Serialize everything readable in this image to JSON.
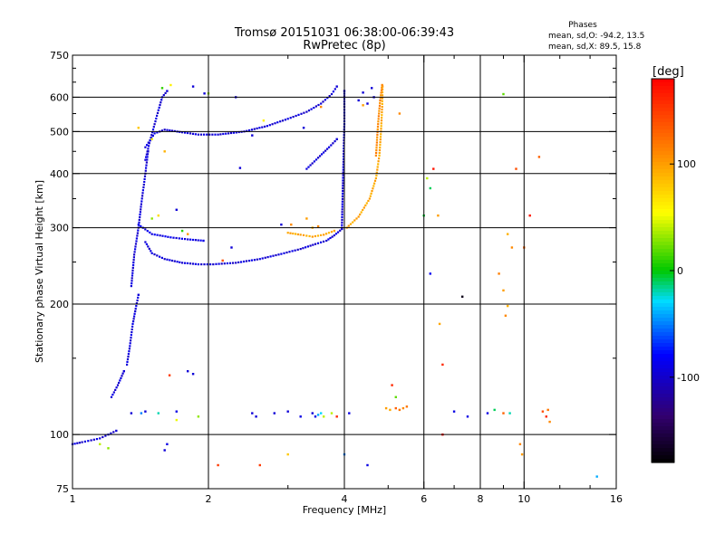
{
  "chart_data": {
    "type": "scatter",
    "title": "Tromsø 20151031 06:38:00-06:39:43",
    "subtitle": "RwPretec (8p)",
    "xlabel": "Frequency [MHz]",
    "ylabel": "Stationary phase Virtual Height [km]",
    "x_scale": "log",
    "y_scale": "log",
    "xlim": [
      1,
      16
    ],
    "ylim": [
      75,
      750
    ],
    "x_ticks": [
      1,
      2,
      4,
      6,
      8,
      10,
      16
    ],
    "x_tick_labels": [
      "1",
      "2",
      "4",
      "6",
      "8",
      "10",
      "16"
    ],
    "x_minor_ticks": [
      3,
      5,
      7,
      9,
      12,
      14
    ],
    "y_ticks": [
      75,
      100,
      200,
      300,
      400,
      500,
      600,
      750
    ],
    "y_tick_labels": [
      "75",
      "100",
      "200",
      "300",
      "400",
      "500",
      "600",
      "750"
    ],
    "y_minor_ticks": [
      150,
      250,
      350,
      450,
      550,
      650,
      700
    ],
    "grid_x": [
      2,
      4,
      6,
      8,
      10
    ],
    "grid_y": [
      100,
      200,
      300,
      400,
      500,
      600
    ],
    "grid": true,
    "phases": {
      "title": "Phases",
      "line1": "mean, sd,O: -94.2, 13.5",
      "line2": "mean, sd,X: 89.5, 15.8"
    },
    "colorbar": {
      "unit": "[deg]",
      "range": [
        -180,
        180
      ],
      "ticks": [
        100,
        0,
        -100
      ],
      "tick_labels": [
        "100",
        "0",
        "-100"
      ],
      "colormap": "rainbow"
    },
    "traces": [
      {
        "x": [
          1.45,
          1.52,
          1.6,
          1.75,
          1.9,
          2.1,
          2.4,
          2.7,
          3.0,
          3.3,
          3.55,
          3.75,
          3.85
        ],
        "y": [
          460,
          495,
          505,
          498,
          492,
          492,
          500,
          515,
          535,
          555,
          580,
          610,
          635
        ],
        "phase": -95
      },
      {
        "x": [
          1.45,
          1.5,
          1.6,
          1.75,
          1.9,
          2.05,
          2.3,
          2.6,
          2.9,
          3.2,
          3.45,
          3.65,
          3.8,
          3.95
        ],
        "y": [
          278,
          262,
          254,
          249,
          247,
          247,
          249,
          254,
          261,
          268,
          275,
          280,
          288,
          298
        ],
        "phase": -95
      },
      {
        "x": [
          1.4,
          1.5,
          1.65,
          1.8,
          1.95
        ],
        "y": [
          305,
          290,
          285,
          282,
          280
        ],
        "phase": -90
      },
      {
        "x": [
          3.3,
          3.5,
          3.7,
          3.85
        ],
        "y": [
          410,
          435,
          460,
          480
        ],
        "phase": -95
      },
      {
        "x": [
          3.95,
          3.96,
          3.97,
          3.98,
          3.99,
          4.0,
          4.0,
          4.0
        ],
        "y": [
          300,
          340,
          380,
          420,
          470,
          520,
          570,
          620
        ],
        "phase": -95
      },
      {
        "x": [
          4.05,
          4.3,
          4.55,
          4.7,
          4.78,
          4.82,
          4.85,
          4.86
        ],
        "y": [
          300,
          318,
          350,
          390,
          440,
          500,
          570,
          635
        ],
        "phase": 95
      },
      {
        "x": [
          4.7,
          4.75,
          4.8,
          4.85
        ],
        "y": [
          440,
          520,
          590,
          640
        ],
        "phase": 110
      },
      {
        "x": [
          3.0,
          3.2,
          3.4,
          3.6,
          3.8
        ],
        "y": [
          292,
          289,
          286,
          289,
          295
        ],
        "phase": 95
      },
      {
        "x": [
          1.32,
          1.34,
          1.36,
          1.38,
          1.4
        ],
        "y": [
          145,
          160,
          180,
          195,
          210
        ],
        "phase": -95
      },
      {
        "x": [
          1.35,
          1.37,
          1.4,
          1.42,
          1.45,
          1.47
        ],
        "y": [
          220,
          260,
          300,
          340,
          400,
          450
        ],
        "phase": -95
      },
      {
        "x": [
          1.45,
          1.48,
          1.52,
          1.55,
          1.58,
          1.62
        ],
        "y": [
          430,
          470,
          520,
          560,
          600,
          620
        ],
        "phase": -95
      },
      {
        "x": [
          1.0,
          1.05,
          1.1,
          1.15,
          1.2,
          1.25
        ],
        "y": [
          95,
          96,
          97,
          98,
          100,
          102
        ],
        "phase": -95
      },
      {
        "x": [
          1.22,
          1.26,
          1.3
        ],
        "y": [
          122,
          130,
          140
        ],
        "phase": -95
      }
    ],
    "scatter_points": [
      {
        "x": 1.58,
        "y": 630,
        "phase": 10
      },
      {
        "x": 1.65,
        "y": 640,
        "phase": 60
      },
      {
        "x": 1.85,
        "y": 635,
        "phase": -95
      },
      {
        "x": 1.96,
        "y": 612,
        "phase": -95
      },
      {
        "x": 2.0,
        "y": 612,
        "phase": 30
      },
      {
        "x": 2.3,
        "y": 600,
        "phase": -95
      },
      {
        "x": 2.15,
        "y": 252,
        "phase": 140
      },
      {
        "x": 2.5,
        "y": 490,
        "phase": -95
      },
      {
        "x": 2.65,
        "y": 530,
        "phase": 60
      },
      {
        "x": 3.25,
        "y": 510,
        "phase": -95
      },
      {
        "x": 4.4,
        "y": 615,
        "phase": -95
      },
      {
        "x": 5.3,
        "y": 550,
        "phase": 110
      },
      {
        "x": 6.3,
        "y": 410,
        "phase": 170
      },
      {
        "x": 6.1,
        "y": 390,
        "phase": 40
      },
      {
        "x": 6.2,
        "y": 370,
        "phase": -10
      },
      {
        "x": 6.0,
        "y": 320,
        "phase": -5
      },
      {
        "x": 6.2,
        "y": 235,
        "phase": -85
      },
      {
        "x": 6.45,
        "y": 320,
        "phase": 100
      },
      {
        "x": 6.5,
        "y": 180,
        "phase": 95
      },
      {
        "x": 6.6,
        "y": 145,
        "phase": 160
      },
      {
        "x": 7.3,
        "y": 208,
        "phase": -170
      },
      {
        "x": 8.8,
        "y": 235,
        "phase": 115
      },
      {
        "x": 9.0,
        "y": 215,
        "phase": 100
      },
      {
        "x": 9.1,
        "y": 188,
        "phase": 110
      },
      {
        "x": 9.2,
        "y": 198,
        "phase": 90
      },
      {
        "x": 9.6,
        "y": 410,
        "phase": 140
      },
      {
        "x": 9.2,
        "y": 290,
        "phase": 90
      },
      {
        "x": 9.4,
        "y": 270,
        "phase": 110
      },
      {
        "x": 9.0,
        "y": 610,
        "phase": 20
      },
      {
        "x": 10.0,
        "y": 270,
        "phase": 130
      },
      {
        "x": 10.3,
        "y": 320,
        "phase": 170
      },
      {
        "x": 10.8,
        "y": 437,
        "phase": 130
      },
      {
        "x": 11.0,
        "y": 113,
        "phase": 140
      },
      {
        "x": 11.2,
        "y": 110,
        "phase": 160
      },
      {
        "x": 11.3,
        "y": 114,
        "phase": 120
      },
      {
        "x": 11.4,
        "y": 107,
        "phase": 110
      },
      {
        "x": 14.5,
        "y": 80,
        "phase": -40
      },
      {
        "x": 9.8,
        "y": 95,
        "phase": 110
      },
      {
        "x": 9.9,
        "y": 90,
        "phase": 100
      },
      {
        "x": 8.3,
        "y": 112,
        "phase": -90
      },
      {
        "x": 8.6,
        "y": 114,
        "phase": -10
      },
      {
        "x": 9.3,
        "y": 112,
        "phase": -20
      },
      {
        "x": 9.0,
        "y": 112,
        "phase": 130
      },
      {
        "x": 7.0,
        "y": 113,
        "phase": -90
      },
      {
        "x": 7.5,
        "y": 110,
        "phase": -90
      },
      {
        "x": 5.5,
        "y": 116,
        "phase": 120
      },
      {
        "x": 5.2,
        "y": 122,
        "phase": 20
      },
      {
        "x": 5.05,
        "y": 114,
        "phase": 95
      },
      {
        "x": 5.2,
        "y": 115,
        "phase": 130
      },
      {
        "x": 5.3,
        "y": 114,
        "phase": 120
      },
      {
        "x": 5.4,
        "y": 115,
        "phase": 110
      },
      {
        "x": 4.95,
        "y": 115,
        "phase": 100
      },
      {
        "x": 5.1,
        "y": 130,
        "phase": 160
      },
      {
        "x": 6.6,
        "y": 100,
        "phase": 175
      },
      {
        "x": 4.0,
        "y": 90,
        "phase": -50
      },
      {
        "x": 4.5,
        "y": 85,
        "phase": -90
      },
      {
        "x": 3.0,
        "y": 90,
        "phase": 80
      },
      {
        "x": 2.6,
        "y": 85,
        "phase": 150
      },
      {
        "x": 2.1,
        "y": 85,
        "phase": 150
      },
      {
        "x": 1.64,
        "y": 137,
        "phase": 150
      },
      {
        "x": 1.8,
        "y": 140,
        "phase": -95
      },
      {
        "x": 1.85,
        "y": 138,
        "phase": -95
      },
      {
        "x": 1.6,
        "y": 92,
        "phase": -95
      },
      {
        "x": 1.62,
        "y": 95,
        "phase": -90
      },
      {
        "x": 1.55,
        "y": 112,
        "phase": -20
      },
      {
        "x": 1.7,
        "y": 108,
        "phase": 50
      },
      {
        "x": 1.7,
        "y": 113,
        "phase": -90
      },
      {
        "x": 1.9,
        "y": 110,
        "phase": 30
      },
      {
        "x": 1.42,
        "y": 112,
        "phase": -50
      },
      {
        "x": 1.45,
        "y": 113,
        "phase": -95
      },
      {
        "x": 1.35,
        "y": 112,
        "phase": -95
      },
      {
        "x": 1.15,
        "y": 95,
        "phase": 40
      },
      {
        "x": 1.2,
        "y": 93,
        "phase": 30
      },
      {
        "x": 2.5,
        "y": 112,
        "phase": -95
      },
      {
        "x": 2.55,
        "y": 110,
        "phase": -95
      },
      {
        "x": 2.8,
        "y": 112,
        "phase": -95
      },
      {
        "x": 3.0,
        "y": 113,
        "phase": -95
      },
      {
        "x": 3.2,
        "y": 110,
        "phase": -90
      },
      {
        "x": 3.4,
        "y": 112,
        "phase": -95
      },
      {
        "x": 3.45,
        "y": 110,
        "phase": -90
      },
      {
        "x": 3.5,
        "y": 111,
        "phase": -40
      },
      {
        "x": 3.55,
        "y": 112,
        "phase": -30
      },
      {
        "x": 3.6,
        "y": 110,
        "phase": 40
      },
      {
        "x": 3.75,
        "y": 112,
        "phase": 40
      },
      {
        "x": 3.85,
        "y": 110,
        "phase": 160
      },
      {
        "x": 4.1,
        "y": 112,
        "phase": -90
      },
      {
        "x": 1.5,
        "y": 315,
        "phase": 30
      },
      {
        "x": 1.55,
        "y": 320,
        "phase": 70
      },
      {
        "x": 1.7,
        "y": 330,
        "phase": -95
      },
      {
        "x": 1.75,
        "y": 295,
        "phase": 10
      },
      {
        "x": 1.8,
        "y": 290,
        "phase": 100
      },
      {
        "x": 1.6,
        "y": 450,
        "phase": 90
      },
      {
        "x": 1.5,
        "y": 480,
        "phase": 60
      },
      {
        "x": 1.4,
        "y": 510,
        "phase": 80
      },
      {
        "x": 2.35,
        "y": 412,
        "phase": -95
      },
      {
        "x": 2.25,
        "y": 270,
        "phase": -95
      },
      {
        "x": 2.9,
        "y": 305,
        "phase": -95
      },
      {
        "x": 3.05,
        "y": 305,
        "phase": 110
      },
      {
        "x": 3.3,
        "y": 315,
        "phase": 100
      },
      {
        "x": 3.4,
        "y": 300,
        "phase": 90
      },
      {
        "x": 3.5,
        "y": 302,
        "phase": 110
      },
      {
        "x": 4.4,
        "y": 575,
        "phase": 100
      },
      {
        "x": 4.6,
        "y": 630,
        "phase": -95
      },
      {
        "x": 4.65,
        "y": 600,
        "phase": -95
      },
      {
        "x": 3.55,
        "y": 570,
        "phase": 110
      },
      {
        "x": 4.3,
        "y": 590,
        "phase": -95
      },
      {
        "x": 4.5,
        "y": 580,
        "phase": -95
      }
    ]
  }
}
